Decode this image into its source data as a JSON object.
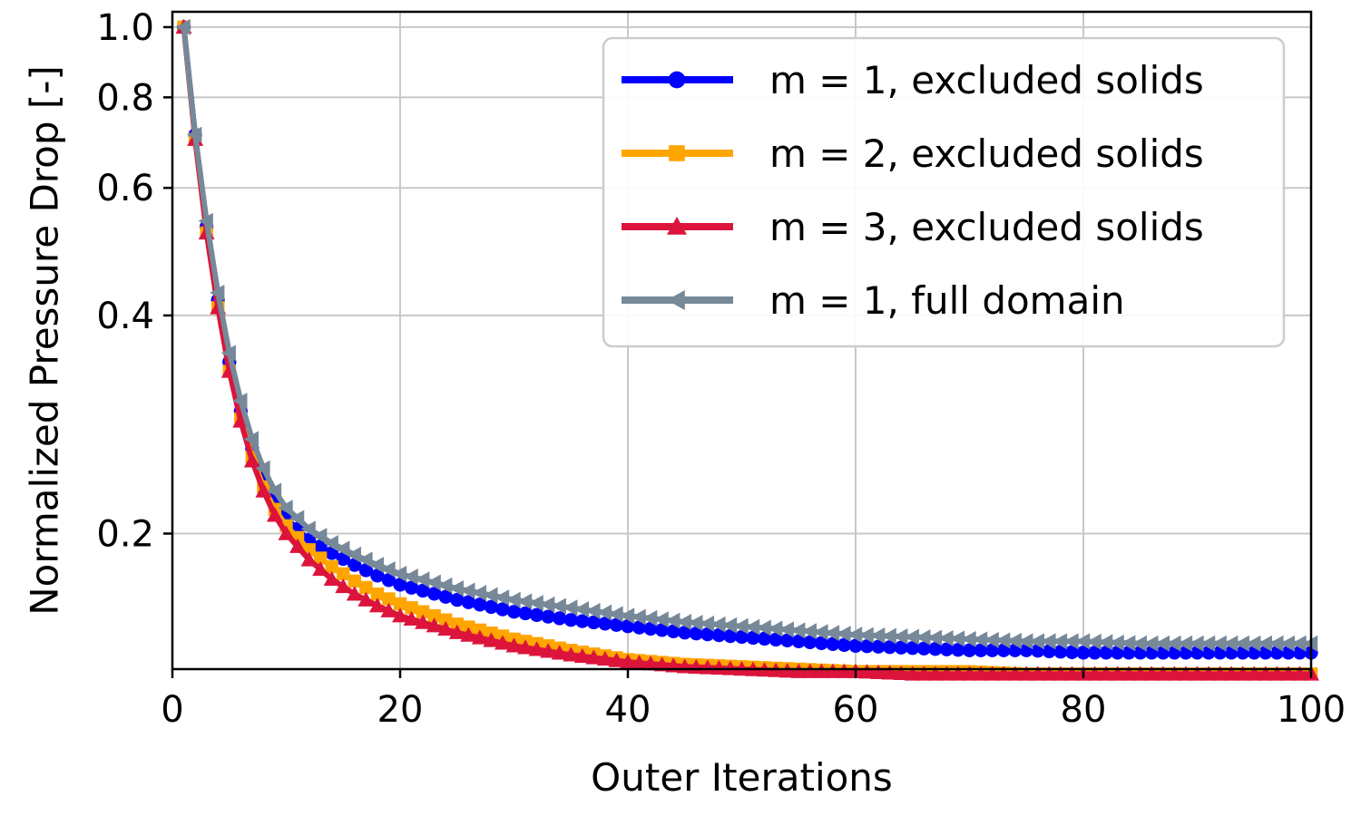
{
  "chart_data": {
    "type": "line",
    "xlabel": "Outer Iterations",
    "ylabel": "Normalized Pressure Drop [-]",
    "xlim": [
      0,
      100
    ],
    "ylim": [
      0.13,
      1.05
    ],
    "yscale": "log",
    "x_ticks": [
      0,
      20,
      40,
      60,
      80,
      100
    ],
    "x_tick_labels": [
      "0",
      "20",
      "40",
      "60",
      "80",
      "100"
    ],
    "y_ticks": [
      0.2,
      0.4,
      0.6,
      0.8,
      1.0
    ],
    "y_tick_labels": [
      "0.2",
      "0.4",
      "0.6",
      "0.8",
      "1.0"
    ],
    "grid": true,
    "legend_position": "top-right",
    "series": [
      {
        "name": "m = 1, excluded solids",
        "color": "#0000ff",
        "marker": "circle",
        "points": [
          [
            1,
            1.0
          ],
          [
            2,
            0.71
          ],
          [
            3,
            0.53
          ],
          [
            4,
            0.42
          ],
          [
            5,
            0.345
          ],
          [
            6,
            0.295
          ],
          [
            7,
            0.262
          ],
          [
            8,
            0.238
          ],
          [
            9,
            0.222
          ],
          [
            10,
            0.21
          ],
          [
            12,
            0.196
          ],
          [
            14,
            0.188
          ],
          [
            16,
            0.181
          ],
          [
            18,
            0.175
          ],
          [
            20,
            0.17
          ],
          [
            25,
            0.162
          ],
          [
            30,
            0.156
          ],
          [
            35,
            0.152
          ],
          [
            40,
            0.149
          ],
          [
            45,
            0.146
          ],
          [
            50,
            0.144
          ],
          [
            55,
            0.142
          ],
          [
            60,
            0.14
          ],
          [
            65,
            0.139
          ],
          [
            70,
            0.138
          ],
          [
            75,
            0.138
          ],
          [
            80,
            0.137
          ],
          [
            85,
            0.137
          ],
          [
            90,
            0.137
          ],
          [
            95,
            0.137
          ],
          [
            100,
            0.137
          ]
        ]
      },
      {
        "name": "m = 2, excluded solids",
        "color": "#ffa500",
        "marker": "square",
        "points": [
          [
            1,
            1.0
          ],
          [
            2,
            0.7
          ],
          [
            3,
            0.52
          ],
          [
            4,
            0.41
          ],
          [
            5,
            0.335
          ],
          [
            6,
            0.288
          ],
          [
            7,
            0.255
          ],
          [
            8,
            0.232
          ],
          [
            9,
            0.216
          ],
          [
            10,
            0.205
          ],
          [
            12,
            0.19
          ],
          [
            14,
            0.18
          ],
          [
            16,
            0.172
          ],
          [
            18,
            0.165
          ],
          [
            20,
            0.16
          ],
          [
            25,
            0.15
          ],
          [
            30,
            0.143
          ],
          [
            35,
            0.138
          ],
          [
            40,
            0.134
          ],
          [
            45,
            0.132
          ],
          [
            50,
            0.131
          ],
          [
            55,
            0.13
          ],
          [
            60,
            0.129
          ],
          [
            65,
            0.129
          ],
          [
            70,
            0.129
          ],
          [
            75,
            0.128
          ],
          [
            80,
            0.128
          ],
          [
            85,
            0.128
          ],
          [
            90,
            0.128
          ],
          [
            95,
            0.128
          ],
          [
            100,
            0.128
          ]
        ]
      },
      {
        "name": "m = 3, excluded solids",
        "color": "#dc143c",
        "marker": "triangle-up",
        "points": [
          [
            1,
            1.0
          ],
          [
            2,
            0.7
          ],
          [
            3,
            0.52
          ],
          [
            4,
            0.41
          ],
          [
            5,
            0.335
          ],
          [
            6,
            0.286
          ],
          [
            7,
            0.252
          ],
          [
            8,
            0.229
          ],
          [
            9,
            0.212
          ],
          [
            10,
            0.2
          ],
          [
            12,
            0.184
          ],
          [
            14,
            0.173
          ],
          [
            16,
            0.165
          ],
          [
            18,
            0.159
          ],
          [
            20,
            0.154
          ],
          [
            25,
            0.146
          ],
          [
            30,
            0.14
          ],
          [
            35,
            0.136
          ],
          [
            40,
            0.133
          ],
          [
            45,
            0.131
          ],
          [
            50,
            0.13
          ],
          [
            55,
            0.129
          ],
          [
            60,
            0.129
          ],
          [
            65,
            0.128
          ],
          [
            70,
            0.128
          ],
          [
            75,
            0.128
          ],
          [
            80,
            0.128
          ],
          [
            85,
            0.128
          ],
          [
            90,
            0.128
          ],
          [
            95,
            0.128
          ],
          [
            100,
            0.128
          ]
        ]
      },
      {
        "name": "m = 1, full domain",
        "color": "#778899",
        "marker": "triangle-left",
        "points": [
          [
            1,
            1.0
          ],
          [
            2,
            0.71
          ],
          [
            3,
            0.54
          ],
          [
            4,
            0.43
          ],
          [
            5,
            0.355
          ],
          [
            6,
            0.305
          ],
          [
            7,
            0.27
          ],
          [
            8,
            0.246
          ],
          [
            9,
            0.229
          ],
          [
            10,
            0.217
          ],
          [
            12,
            0.203
          ],
          [
            14,
            0.194
          ],
          [
            16,
            0.187
          ],
          [
            18,
            0.181
          ],
          [
            20,
            0.176
          ],
          [
            25,
            0.168
          ],
          [
            30,
            0.162
          ],
          [
            35,
            0.158
          ],
          [
            40,
            0.154
          ],
          [
            45,
            0.151
          ],
          [
            50,
            0.149
          ],
          [
            55,
            0.147
          ],
          [
            60,
            0.145
          ],
          [
            65,
            0.144
          ],
          [
            70,
            0.143
          ],
          [
            75,
            0.142
          ],
          [
            80,
            0.142
          ],
          [
            85,
            0.141
          ],
          [
            90,
            0.141
          ],
          [
            95,
            0.141
          ],
          [
            100,
            0.141
          ]
        ]
      }
    ]
  }
}
